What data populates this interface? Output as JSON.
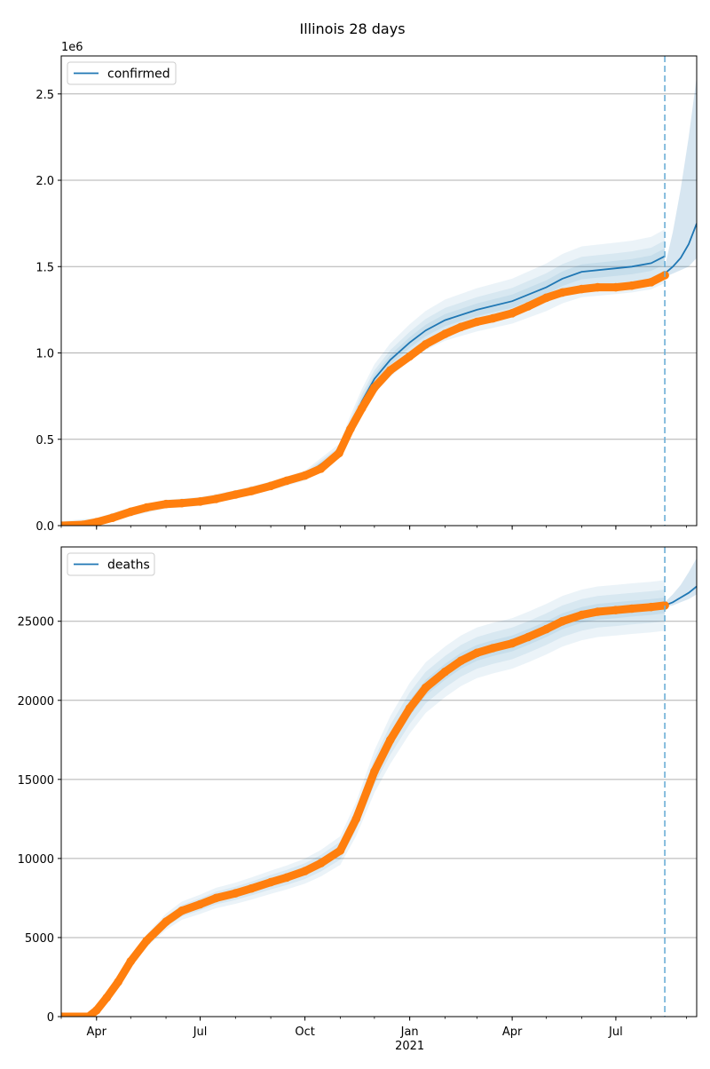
{
  "figure": {
    "title": "Illinois 28 days"
  },
  "colors": {
    "fit_line": "#1f77b4",
    "band": "#1f77b4",
    "observed": "#ff7f0e",
    "forecast_marker": "#6baed6",
    "grid": "#b0b0b0"
  },
  "chart_data": [
    {
      "type": "line",
      "panel": "confirmed",
      "y_offset_label": "1e6",
      "ylim": [
        0,
        2.72
      ],
      "y_ticks": [
        0.0,
        0.5,
        1.0,
        1.5,
        2.0,
        2.5
      ],
      "y_tick_labels": [
        "0.0",
        "0.5",
        "1.0",
        "1.5",
        "2.0",
        "2.5"
      ],
      "xlim": [
        "2020-03-01",
        "2021-09-10"
      ],
      "x_tick_dates": [
        "2020-04-01",
        "2020-07-01",
        "2020-10-01",
        "2021-01-01",
        "2021-04-01",
        "2021-07-01"
      ],
      "x_tick_labels": [
        "Apr",
        "Jul",
        "Oct",
        "Jan",
        "Apr",
        "Jul"
      ],
      "x_year_label": "2021",
      "grid": "horizontal",
      "legend": {
        "label": "confirmed",
        "position": "upper-left"
      },
      "forecast_start": "2021-08-13",
      "observed": {
        "x": [
          "2020-03-01",
          "2020-03-20",
          "2020-04-01",
          "2020-04-15",
          "2020-05-01",
          "2020-05-15",
          "2020-06-01",
          "2020-06-15",
          "2020-07-01",
          "2020-07-15",
          "2020-08-01",
          "2020-08-15",
          "2020-09-01",
          "2020-09-15",
          "2020-10-01",
          "2020-10-15",
          "2020-10-31",
          "2020-11-10",
          "2020-11-20",
          "2020-12-01",
          "2020-12-15",
          "2021-01-01",
          "2021-01-15",
          "2021-02-01",
          "2021-02-15",
          "2021-03-01",
          "2021-03-15",
          "2021-04-01",
          "2021-04-15",
          "2021-05-01",
          "2021-05-15",
          "2021-06-01",
          "2021-06-15",
          "2021-07-01",
          "2021-07-15",
          "2021-08-01",
          "2021-08-13"
        ],
        "y": [
          0.0,
          0.005,
          0.02,
          0.045,
          0.08,
          0.105,
          0.125,
          0.13,
          0.14,
          0.155,
          0.18,
          0.2,
          0.23,
          0.26,
          0.29,
          0.33,
          0.42,
          0.56,
          0.68,
          0.8,
          0.9,
          0.98,
          1.05,
          1.11,
          1.15,
          1.18,
          1.2,
          1.23,
          1.27,
          1.32,
          1.35,
          1.37,
          1.38,
          1.38,
          1.39,
          1.41,
          1.45
        ]
      },
      "fit": {
        "x": [
          "2020-03-01",
          "2020-04-01",
          "2020-05-01",
          "2020-06-01",
          "2020-07-01",
          "2020-08-01",
          "2020-09-01",
          "2020-10-01",
          "2020-10-31",
          "2020-11-10",
          "2020-11-20",
          "2020-12-01",
          "2020-12-15",
          "2021-01-01",
          "2021-01-15",
          "2021-02-01",
          "2021-03-01",
          "2021-04-01",
          "2021-05-01",
          "2021-05-15",
          "2021-06-01",
          "2021-07-01",
          "2021-07-15",
          "2021-08-01",
          "2021-08-13"
        ],
        "y": [
          0.0,
          0.02,
          0.08,
          0.125,
          0.14,
          0.18,
          0.23,
          0.29,
          0.43,
          0.58,
          0.72,
          0.85,
          0.96,
          1.06,
          1.13,
          1.19,
          1.25,
          1.3,
          1.38,
          1.43,
          1.47,
          1.49,
          1.5,
          1.52,
          1.56
        ]
      },
      "forecast": {
        "x": [
          "2021-08-13",
          "2021-08-20",
          "2021-08-27",
          "2021-09-03",
          "2021-09-10"
        ],
        "y": [
          1.46,
          1.5,
          1.55,
          1.63,
          1.75
        ]
      },
      "forecast_upper": [
        1.5,
        1.7,
        1.95,
        2.25,
        2.6
      ],
      "forecast_lower": [
        1.44,
        1.46,
        1.48,
        1.5,
        1.55
      ],
      "band_spreads": [
        0.05,
        0.1,
        0.17
      ]
    },
    {
      "type": "line",
      "panel": "deaths",
      "ylim": [
        0,
        29700
      ],
      "y_ticks": [
        0,
        5000,
        10000,
        15000,
        20000,
        25000
      ],
      "y_tick_labels": [
        "0",
        "5000",
        "10000",
        "15000",
        "20000",
        "25000"
      ],
      "xlim": [
        "2020-03-01",
        "2021-09-10"
      ],
      "x_tick_dates": [
        "2020-04-01",
        "2020-07-01",
        "2020-10-01",
        "2021-01-01",
        "2021-04-01",
        "2021-07-01"
      ],
      "x_tick_labels": [
        "Apr",
        "Jul",
        "Oct",
        "Jan",
        "Apr",
        "Jul"
      ],
      "x_year_label": "2021",
      "grid": "horizontal",
      "legend": {
        "label": "deaths",
        "position": "upper-left"
      },
      "forecast_start": "2021-08-13",
      "observed": {
        "x": [
          "2020-03-01",
          "2020-03-25",
          "2020-04-01",
          "2020-04-10",
          "2020-04-20",
          "2020-05-01",
          "2020-05-15",
          "2020-06-01",
          "2020-06-15",
          "2020-07-01",
          "2020-07-15",
          "2020-08-01",
          "2020-08-15",
          "2020-09-01",
          "2020-09-15",
          "2020-10-01",
          "2020-10-15",
          "2020-11-01",
          "2020-11-15",
          "2020-12-01",
          "2020-12-15",
          "2021-01-01",
          "2021-01-15",
          "2021-02-01",
          "2021-02-15",
          "2021-03-01",
          "2021-03-15",
          "2021-04-01",
          "2021-04-15",
          "2021-05-01",
          "2021-05-15",
          "2021-06-01",
          "2021-06-15",
          "2021-07-01",
          "2021-07-15",
          "2021-08-01",
          "2021-08-13"
        ],
        "y": [
          0,
          0,
          400,
          1200,
          2200,
          3500,
          4800,
          6000,
          6700,
          7100,
          7500,
          7800,
          8100,
          8500,
          8800,
          9200,
          9700,
          10500,
          12500,
          15500,
          17500,
          19500,
          20800,
          21800,
          22500,
          23000,
          23300,
          23600,
          24000,
          24500,
          25000,
          25400,
          25600,
          25700,
          25800,
          25900,
          26000
        ]
      },
      "forecast": {
        "x": [
          "2021-08-13",
          "2021-08-20",
          "2021-08-27",
          "2021-09-03",
          "2021-09-10"
        ],
        "y": [
          26000,
          26200,
          26500,
          26800,
          27200
        ]
      },
      "forecast_upper": [
        26200,
        26700,
        27300,
        28100,
        29000
      ],
      "forecast_lower": [
        25900,
        26000,
        26200,
        26400,
        26700
      ],
      "band_spreads": [
        500,
        1000,
        1600
      ]
    }
  ]
}
